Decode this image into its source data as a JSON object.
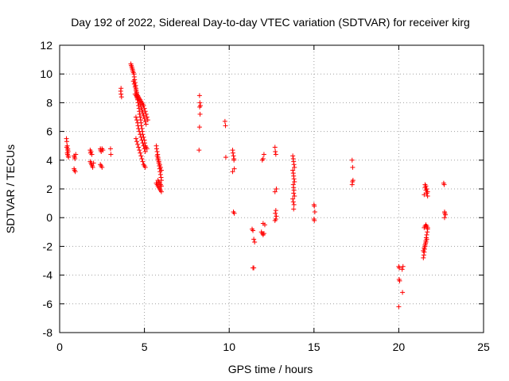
{
  "chart_data": {
    "type": "scatter",
    "title": "Day 192 of 2022, Sidereal Day-to-day VTEC variation (SDTVAR) for receiver kirg",
    "xlabel": "GPS time / hours",
    "ylabel": "SDTVAR / TECUs",
    "xlim": [
      0,
      25
    ],
    "ylim": [
      -8,
      12
    ],
    "xticks": [
      0,
      5,
      10,
      15,
      20,
      25
    ],
    "yticks": [
      -8,
      -6,
      -4,
      -2,
      0,
      2,
      4,
      6,
      8,
      10,
      12
    ],
    "grid": true,
    "marker": "+",
    "color": "#ff0000",
    "series": [
      {
        "name": "SDTVAR",
        "x": [
          0.4,
          0.42,
          0.45,
          0.48,
          0.5,
          0.45,
          0.47,
          0.5,
          0.52,
          0.42,
          0.48,
          0.85,
          0.88,
          0.9,
          0.95,
          0.85,
          0.88,
          0.92,
          1.8,
          1.82,
          1.85,
          1.9,
          1.8,
          1.85,
          1.88,
          1.92,
          1.95,
          2.0,
          2.4,
          2.42,
          2.45,
          2.5,
          2.55,
          2.4,
          2.45,
          2.5,
          3.0,
          3.02,
          3.6,
          3.62,
          3.65,
          3.62,
          4.2,
          4.22,
          4.25,
          4.28,
          4.3,
          4.32,
          4.35,
          4.38,
          4.4,
          4.42,
          4.45,
          4.48,
          4.5,
          4.52,
          4.55,
          4.58,
          4.6,
          4.62,
          4.65,
          4.68,
          4.7,
          4.72,
          4.75,
          4.78,
          4.8,
          4.82,
          4.85,
          4.88,
          4.9,
          4.95,
          5.0,
          5.02,
          5.05,
          5.1,
          5.15,
          4.35,
          4.4,
          4.45,
          4.5,
          4.55,
          4.6,
          4.65,
          4.7,
          4.75,
          4.8,
          4.85,
          4.9,
          4.95,
          5.0,
          5.05,
          5.1,
          4.55,
          4.6,
          4.65,
          4.7,
          4.75,
          4.8,
          4.85,
          4.9,
          4.95,
          5.0,
          5.05,
          5.1,
          5.15,
          5.2,
          4.5,
          4.55,
          4.6,
          4.62,
          4.65,
          4.7,
          4.75,
          4.8,
          4.85,
          4.9,
          4.95,
          5.0,
          5.05,
          4.5,
          4.55,
          4.6,
          4.65,
          4.7,
          4.75,
          4.8,
          4.85,
          4.9,
          4.95,
          5.0,
          5.05,
          4.45,
          4.5,
          4.55,
          4.58,
          5.7,
          5.72,
          5.75,
          5.78,
          5.8,
          5.82,
          5.85,
          5.88,
          5.9,
          5.92,
          5.95,
          5.98,
          6.0,
          5.7,
          5.75,
          5.8,
          5.85,
          5.9,
          5.95,
          6.0,
          5.75,
          5.8,
          5.85,
          5.9,
          5.95,
          6.0,
          5.8,
          5.85,
          5.9,
          5.95,
          6.0,
          8.25,
          8.27,
          8.3,
          8.28,
          8.25,
          8.22,
          8.26,
          9.75,
          9.78,
          9.8,
          10.2,
          10.22,
          10.25,
          10.28,
          10.3,
          10.2,
          10.25,
          10.3,
          10.28,
          11.35,
          11.4,
          11.45,
          11.5,
          11.4,
          11.45,
          11.9,
          11.95,
          12.0,
          12.05,
          11.95,
          12.0,
          12.05,
          12.0,
          12.1,
          12.7,
          12.72,
          12.75,
          12.78,
          12.7,
          12.75,
          12.72,
          12.78,
          12.75,
          12.7,
          13.75,
          13.78,
          13.8,
          13.82,
          13.85,
          13.75,
          13.78,
          13.8,
          13.82,
          13.85,
          13.78,
          13.8,
          13.82,
          13.8,
          13.85,
          13.75,
          13.78,
          13.82,
          13.8,
          15.0,
          15.02,
          15.05,
          15.0,
          15.02,
          17.25,
          17.28,
          17.3,
          17.27,
          17.25,
          20.0,
          20.02,
          20.05,
          20.0,
          20.03,
          20.2,
          20.25,
          20.22,
          21.45,
          21.48,
          21.5,
          21.52,
          21.55,
          21.58,
          21.6,
          21.62,
          21.65,
          21.68,
          21.7,
          21.5,
          21.55,
          21.6,
          21.65,
          21.7,
          21.55,
          21.6,
          21.65,
          21.7,
          21.5,
          21.55,
          21.6,
          21.65,
          21.7,
          21.45,
          21.5,
          21.55,
          21.6,
          21.65,
          22.65,
          22.68,
          22.7,
          22.72,
          22.75,
          22.7
        ],
        "y": [
          5.5,
          5.3,
          5.0,
          4.8,
          4.6,
          4.5,
          4.4,
          4.3,
          4.2,
          4.9,
          4.7,
          4.3,
          4.2,
          4.1,
          4.4,
          3.4,
          3.3,
          3.2,
          4.7,
          4.5,
          4.6,
          4.4,
          3.9,
          3.8,
          3.7,
          3.6,
          3.5,
          3.8,
          4.8,
          4.7,
          4.6,
          4.8,
          4.7,
          3.7,
          3.6,
          3.5,
          4.8,
          4.4,
          8.8,
          9.0,
          8.4,
          8.6,
          10.7,
          10.6,
          10.5,
          10.4,
          10.3,
          10.2,
          10.1,
          10.0,
          9.8,
          9.6,
          9.4,
          9.2,
          9.0,
          8.8,
          8.6,
          8.4,
          8.2,
          8.0,
          7.8,
          7.6,
          7.4,
          7.2,
          7.0,
          6.8,
          6.6,
          6.4,
          6.2,
          6.0,
          5.8,
          5.6,
          5.4,
          5.2,
          5.0,
          4.9,
          4.8,
          9.5,
          9.3,
          9.1,
          8.9,
          8.7,
          8.5,
          8.3,
          8.1,
          7.9,
          7.7,
          7.5,
          7.3,
          7.1,
          6.9,
          6.7,
          6.5,
          8.6,
          8.5,
          8.4,
          8.3,
          8.2,
          8.1,
          8.0,
          7.9,
          7.8,
          7.6,
          7.4,
          7.2,
          7.0,
          6.8,
          7.0,
          6.8,
          6.6,
          6.4,
          6.2,
          6.0,
          5.8,
          5.6,
          5.4,
          5.2,
          5.0,
          4.8,
          4.6,
          5.5,
          5.3,
          5.1,
          4.9,
          4.7,
          4.5,
          4.3,
          4.1,
          3.9,
          3.7,
          3.6,
          3.5,
          8.6,
          8.5,
          8.4,
          8.3,
          5.0,
          4.8,
          4.6,
          4.4,
          4.2,
          4.0,
          3.8,
          3.6,
          3.4,
          3.2,
          3.0,
          2.8,
          2.6,
          2.4,
          2.3,
          2.2,
          2.1,
          2.0,
          1.9,
          1.8,
          4.3,
          4.1,
          3.9,
          3.7,
          3.5,
          3.3,
          2.6,
          2.5,
          2.4,
          2.3,
          2.2,
          8.5,
          8.0,
          7.8,
          7.2,
          6.3,
          4.7,
          7.7,
          6.7,
          6.4,
          4.2,
          4.7,
          4.5,
          4.3,
          4.1,
          3.4,
          3.2,
          0.4,
          0.3,
          4.0,
          -0.8,
          -0.9,
          -1.5,
          -1.7,
          -3.5,
          -3.5,
          -1.0,
          -1.1,
          -1.2,
          -1.1,
          4.0,
          4.1,
          4.4,
          -0.4,
          -0.5,
          4.9,
          4.6,
          4.4,
          2.0,
          1.8,
          0.5,
          0.3,
          0.1,
          -0.1,
          -0.2,
          4.3,
          4.1,
          3.9,
          3.7,
          3.5,
          3.3,
          3.1,
          2.9,
          2.7,
          2.5,
          2.3,
          2.1,
          1.9,
          1.7,
          1.5,
          1.3,
          1.1,
          0.9,
          0.6,
          0.9,
          0.8,
          0.4,
          -0.1,
          -0.2,
          4.0,
          3.5,
          2.6,
          2.5,
          2.3,
          -3.4,
          -4.3,
          -4.4,
          -6.2,
          -3.5,
          -3.6,
          -3.4,
          -5.2,
          -2.8,
          -2.6,
          -2.4,
          -2.2,
          -2.0,
          -1.8,
          -1.6,
          -1.4,
          -1.2,
          -1.0,
          -0.8,
          -0.7,
          -0.6,
          -0.5,
          -0.6,
          -0.7,
          2.3,
          2.2,
          2.0,
          1.8,
          1.6,
          2.1,
          1.9,
          1.7,
          1.5,
          -2.3,
          -2.1,
          -1.9,
          -1.7,
          -1.5,
          2.4,
          2.3,
          0.4,
          0.3,
          0.2,
          0.0
        ]
      }
    ]
  }
}
